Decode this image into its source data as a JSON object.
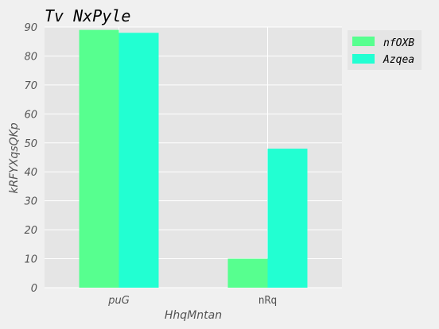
{
  "chart_data": {
    "type": "bar",
    "title": "Tv NxPyle",
    "xlabel": "HhqMntan",
    "ylabel": "kRFYXqsQKp",
    "categories": [
      "puG",
      "nRq"
    ],
    "category_styles": [
      "italic",
      "mono"
    ],
    "series": [
      {
        "name": "nfOXB",
        "color": "#57ff8f",
        "values": [
          89,
          10
        ]
      },
      {
        "name": "Azqea",
        "color": "#22ffd2",
        "values": [
          88,
          48
        ]
      }
    ],
    "ylim": [
      0,
      90
    ],
    "yticks": [
      "0",
      "10",
      "20",
      "30",
      "40",
      "50",
      "60",
      "70",
      "80",
      "90"
    ],
    "grid": true,
    "legend_position": "top-right",
    "plot_background": "#e5e5e5"
  }
}
